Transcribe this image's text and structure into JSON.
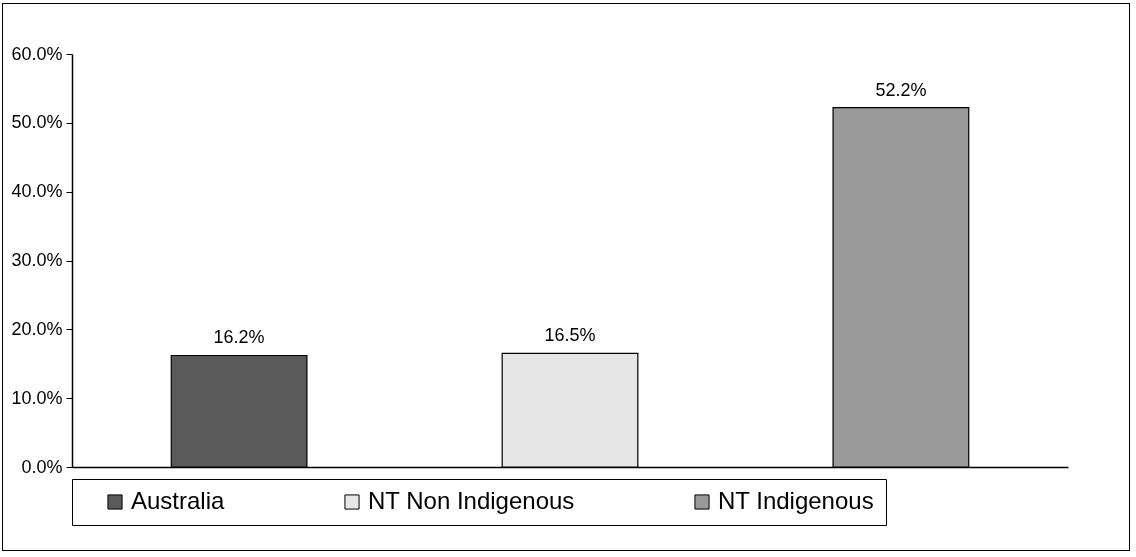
{
  "chart_data": {
    "type": "bar",
    "categories": [
      null,
      null,
      null
    ],
    "series": [
      {
        "name": "Australia",
        "color": "#5a5a5a",
        "values": [
          16.2,
          null,
          null
        ],
        "value_labels": [
          "16.2%",
          null,
          null
        ]
      },
      {
        "name": "NT Non Indigenous",
        "color": "#e6e6e6",
        "values": [
          null,
          16.5,
          null
        ],
        "value_labels": [
          null,
          "16.5%",
          null
        ]
      },
      {
        "name": "NT Indigenous",
        "color": "#9a9a9a",
        "values": [
          null,
          null,
          52.2
        ],
        "value_labels": [
          null,
          null,
          "52.2%"
        ]
      }
    ],
    "ylim": [
      0,
      60
    ],
    "yticks": [
      {
        "value": 0,
        "label": "0.0%"
      },
      {
        "value": 10,
        "label": "10.0%"
      },
      {
        "value": 20,
        "label": "20.0%"
      },
      {
        "value": 30,
        "label": "30.0%"
      },
      {
        "value": 40,
        "label": "40.0%"
      },
      {
        "value": 50,
        "label": "50.0%"
      },
      {
        "value": 60,
        "label": "60.0%"
      }
    ],
    "grid": false,
    "legend": "bottom"
  }
}
